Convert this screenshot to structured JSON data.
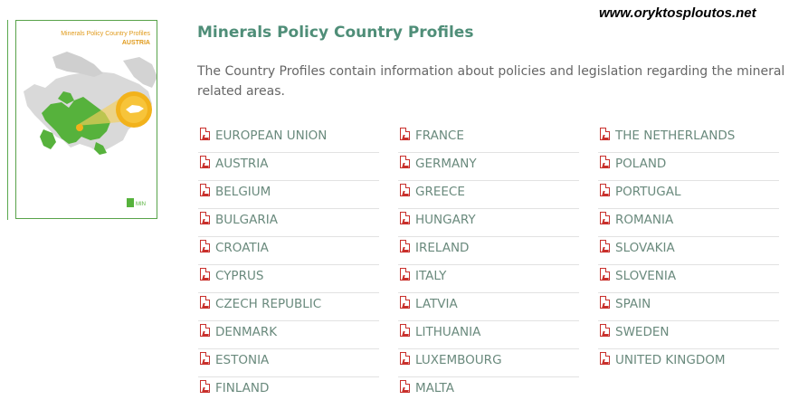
{
  "watermark": "www.oryktosploutos.net",
  "cover": {
    "title": "Minerals Policy Country Profiles",
    "subtitle": "AUSTRIA",
    "logo_text": "MIN"
  },
  "header": {
    "title": "Minerals Policy Country Profiles",
    "intro": "The Country Profiles contain information about policies and legislation regarding the mineral sector a",
    "intro_line2": "related areas."
  },
  "columns": [
    [
      "EUROPEAN UNION",
      "AUSTRIA",
      "BELGIUM",
      "BULGARIA",
      "CROATIA",
      "CYPRUS",
      "CZECH REPUBLIC",
      "DENMARK",
      "ESTONIA",
      "FINLAND"
    ],
    [
      "FRANCE",
      "GERMANY",
      "GREECE",
      "HUNGARY",
      "IRELAND",
      "ITALY",
      "LATVIA",
      "LITHUANIA",
      "LUXEMBOURG",
      "MALTA"
    ],
    [
      "THE NETHERLANDS",
      "POLAND",
      "PORTUGAL",
      "ROMANIA",
      "SLOVAKIA",
      "SLOVENIA",
      "SPAIN",
      "SWEDEN",
      "UNITED KINGDOM"
    ]
  ],
  "icons": {
    "document": "pdf-icon"
  },
  "colors": {
    "title": "#4f8e78",
    "link": "#6a8a7d",
    "accent": "#5aa84e",
    "highlight": "#f2b21b",
    "pdf": "#c9302c"
  }
}
